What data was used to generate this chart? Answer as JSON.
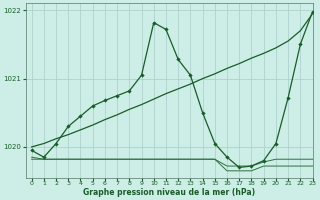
{
  "background_color": "#cceee6",
  "grid_color": "#aacccc",
  "line_color_dark": "#1a5c2a",
  "line_color_mid": "#2d7040",
  "xlabel": "Graphe pression niveau de la mer (hPa)",
  "xlim": [
    -0.5,
    23
  ],
  "ylim": [
    1019.55,
    1022.1
  ],
  "yticks": [
    1020,
    1021,
    1022
  ],
  "xticks": [
    0,
    1,
    2,
    3,
    4,
    5,
    6,
    7,
    8,
    9,
    10,
    11,
    12,
    13,
    14,
    15,
    16,
    17,
    18,
    19,
    20,
    21,
    22,
    23
  ],
  "line_diagonal_x": [
    0,
    1,
    2,
    3,
    4,
    5,
    6,
    7,
    8,
    9,
    10,
    11,
    12,
    13,
    14,
    15,
    16,
    17,
    18,
    19,
    20,
    21,
    22,
    23
  ],
  "line_diagonal_y": [
    1020.0,
    1020.05,
    1020.12,
    1020.18,
    1020.25,
    1020.32,
    1020.4,
    1020.47,
    1020.55,
    1020.62,
    1020.7,
    1020.78,
    1020.85,
    1020.92,
    1021.0,
    1021.07,
    1021.15,
    1021.22,
    1021.3,
    1021.37,
    1021.45,
    1021.55,
    1021.7,
    1021.95
  ],
  "line_peaked_x": [
    0,
    1,
    2,
    3,
    4,
    5,
    6,
    7,
    8,
    9,
    10,
    11,
    12,
    13,
    14,
    15,
    16,
    17,
    18,
    19,
    20,
    21,
    22,
    23
  ],
  "line_peaked_y": [
    1019.95,
    1019.85,
    1020.05,
    1020.3,
    1020.45,
    1020.6,
    1020.68,
    1020.75,
    1020.82,
    1021.05,
    1021.82,
    1021.72,
    1021.28,
    1021.05,
    1020.5,
    1020.05,
    1019.85,
    1019.7,
    1019.72,
    1019.8,
    1020.05,
    1020.72,
    1021.5,
    1021.98
  ],
  "line_flat1_x": [
    0,
    1,
    2,
    3,
    4,
    5,
    6,
    7,
    8,
    9,
    10,
    11,
    12,
    13,
    14,
    15,
    16,
    17,
    18,
    19,
    20,
    21,
    22,
    23
  ],
  "line_flat1_y": [
    1019.85,
    1019.82,
    1019.82,
    1019.82,
    1019.82,
    1019.82,
    1019.82,
    1019.82,
    1019.82,
    1019.82,
    1019.82,
    1019.82,
    1019.82,
    1019.82,
    1019.82,
    1019.82,
    1019.72,
    1019.72,
    1019.72,
    1019.78,
    1019.82,
    1019.82,
    1019.82,
    1019.82
  ],
  "line_flat2_x": [
    0,
    1,
    2,
    3,
    4,
    5,
    6,
    7,
    8,
    9,
    10,
    11,
    12,
    13,
    14,
    15,
    16,
    17,
    18,
    19,
    20,
    21,
    22,
    23
  ],
  "line_flat2_y": [
    1019.82,
    1019.82,
    1019.82,
    1019.82,
    1019.82,
    1019.82,
    1019.82,
    1019.82,
    1019.82,
    1019.82,
    1019.82,
    1019.82,
    1019.82,
    1019.82,
    1019.82,
    1019.82,
    1019.65,
    1019.65,
    1019.65,
    1019.72,
    1019.72,
    1019.72,
    1019.72,
    1019.72
  ]
}
